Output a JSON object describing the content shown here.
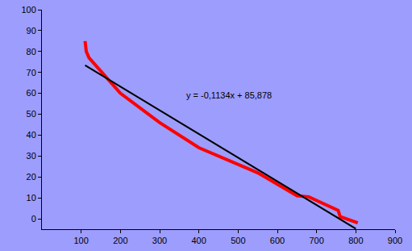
{
  "chart_data": {
    "type": "line",
    "annotation": "y = -0,1134x + 85,878",
    "series": [
      {
        "color": "#ff0000",
        "line_style": "solid",
        "x": [
          110,
          113,
          120,
          200,
          300,
          400,
          550,
          650,
          680,
          755,
          760,
          805
        ],
        "values": [
          85,
          80,
          77,
          60,
          46,
          34,
          22,
          11,
          10.5,
          4,
          1,
          -2
        ]
      },
      {
        "color": "#000000",
        "line_style": "solid",
        "x": [
          110,
          800
        ],
        "values": [
          73.4,
          -4.8
        ]
      }
    ],
    "xlim": [
      0,
      900
    ],
    "xticks": [
      100,
      200,
      300,
      400,
      500,
      600,
      700,
      800,
      900
    ],
    "ylim": [
      -5,
      100
    ],
    "yticks": [
      0,
      10,
      20,
      30,
      40,
      50,
      60,
      70,
      80,
      90,
      100
    ],
    "grid": false
  }
}
